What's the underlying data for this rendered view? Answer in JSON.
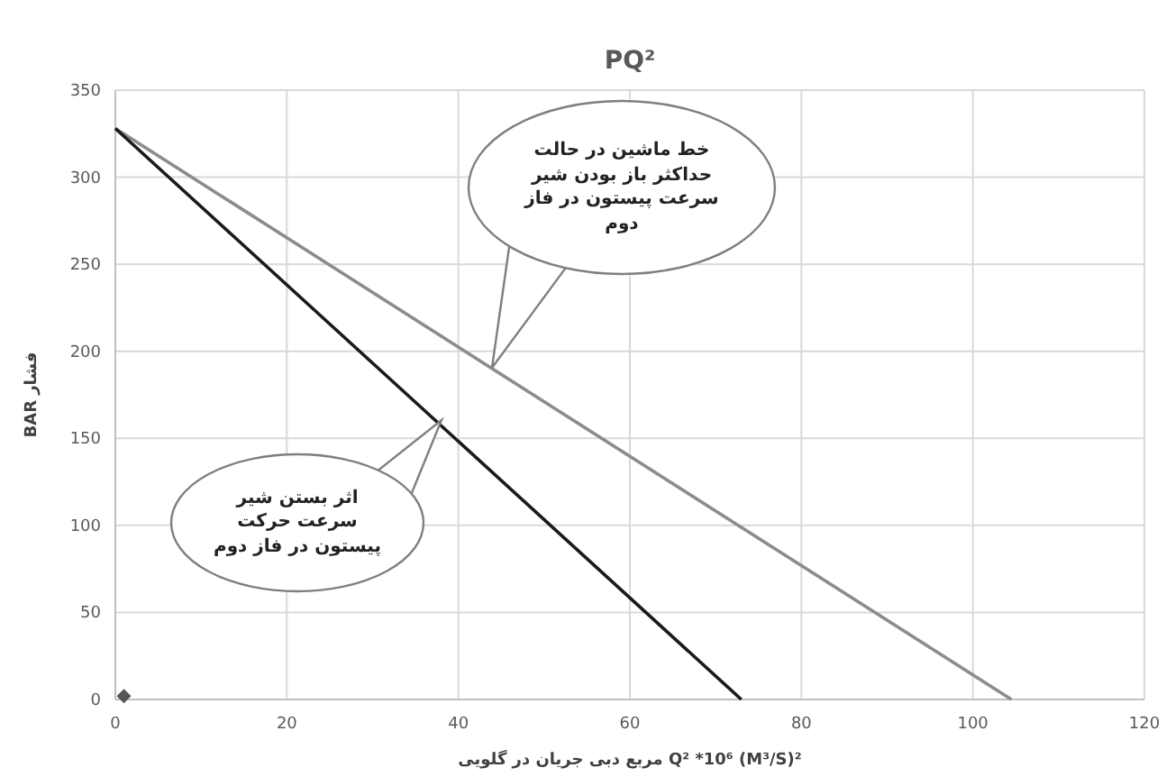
{
  "chart_data": {
    "type": "line",
    "title": "PQ²",
    "xlabel": "مربع دبی جریان در گلویی Q² *10⁶ (M³/S)²",
    "ylabel": "BAR فشار",
    "series": [
      {
        "x": [
          0,
          104.5
        ],
        "values": [
          328,
          0
        ],
        "color": "#8c8c8c"
      },
      {
        "x": [
          0,
          73
        ],
        "values": [
          328,
          0
        ],
        "color": "#1a1a1a"
      },
      {
        "type": "scatter",
        "x": [
          1
        ],
        "values": [
          2
        ],
        "color": "#555555",
        "marker": "diamond"
      }
    ],
    "annotations": [
      "خط ماشین در حالت حداکثر باز بودن شیر سرعت پیستون در فاز دوم",
      "اثر بستن شیر سرعت حرکت پیستون در فاز دوم"
    ],
    "xlim": [
      0,
      120
    ],
    "xticks": [
      0,
      20,
      40,
      60,
      80,
      100,
      120
    ],
    "ylim": [
      0,
      350
    ],
    "yticks": [
      0,
      50,
      100,
      150,
      200,
      250,
      300,
      350
    ],
    "grid": true
  }
}
